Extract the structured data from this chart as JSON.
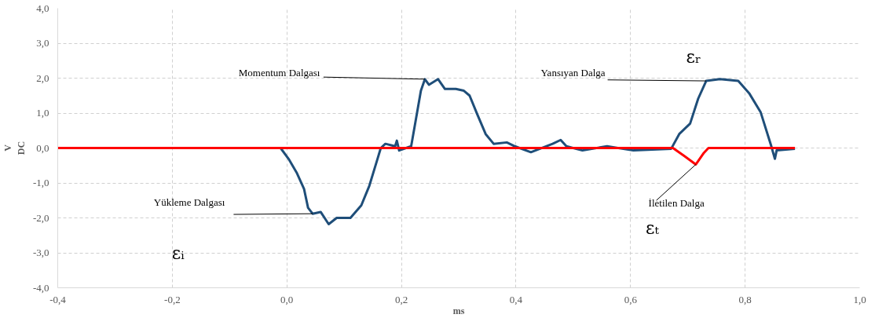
{
  "chart_data": {
    "type": "line",
    "xlabel": "ms",
    "ylabel": "V\nDC",
    "xlim": [
      -0.4,
      1.0
    ],
    "ylim": [
      -4.0,
      4.0
    ],
    "xticks": [
      {
        "value": -0.4,
        "label": "-0,4"
      },
      {
        "value": -0.2,
        "label": "-0,2"
      },
      {
        "value": 0.0,
        "label": "0,0"
      },
      {
        "value": 0.2,
        "label": "0,2"
      },
      {
        "value": 0.4,
        "label": "0,4"
      },
      {
        "value": 0.6,
        "label": "0,6"
      },
      {
        "value": 0.8,
        "label": "0,8"
      },
      {
        "value": 1.0,
        "label": "1,0"
      }
    ],
    "yticks": [
      {
        "value": -4,
        "label": "-4,0"
      },
      {
        "value": -3,
        "label": "-3,0"
      },
      {
        "value": -2,
        "label": "-2,0"
      },
      {
        "value": -1,
        "label": "-1,0"
      },
      {
        "value": 0,
        "label": "0,0"
      },
      {
        "value": 1,
        "label": "1,0"
      },
      {
        "value": 2,
        "label": "2,0"
      },
      {
        "value": 3,
        "label": "3,0"
      },
      {
        "value": 4,
        "label": "4,0"
      }
    ],
    "grid": true,
    "marker": "none",
    "line_style": "solid",
    "series": [
      {
        "color": "#1f4e79",
        "x": [
          -0.4,
          -0.011,
          0.003,
          0.017,
          0.03,
          0.037,
          0.045,
          0.059,
          0.073,
          0.087,
          0.111,
          0.13,
          0.144,
          0.157,
          0.164,
          0.172,
          0.189,
          0.192,
          0.196,
          0.217,
          0.224,
          0.234,
          0.241,
          0.248,
          0.264,
          0.276,
          0.295,
          0.309,
          0.319,
          0.333,
          0.347,
          0.361,
          0.384,
          0.398,
          0.426,
          0.464,
          0.478,
          0.488,
          0.516,
          0.559,
          0.605,
          0.671,
          0.685,
          0.704,
          0.718,
          0.732,
          0.756,
          0.788,
          0.807,
          0.827,
          0.845,
          0.852,
          0.855,
          0.887
        ],
        "values": [
          0,
          0,
          -0.31,
          -0.7,
          -1.17,
          -1.71,
          -1.88,
          -1.83,
          -2.18,
          -2.0,
          -2.0,
          -1.64,
          -1.08,
          -0.38,
          0,
          0.12,
          0.05,
          0.21,
          -0.07,
          0.05,
          0.7,
          1.64,
          1.97,
          1.81,
          1.97,
          1.69,
          1.69,
          1.64,
          1.5,
          0.94,
          0.4,
          0.12,
          0.16,
          0.05,
          -0.12,
          0.12,
          0.23,
          0.05,
          -0.07,
          0.05,
          -0.07,
          -0.02,
          0.4,
          0.7,
          1.41,
          1.92,
          1.97,
          1.92,
          1.57,
          1.03,
          0.09,
          -0.31,
          -0.07,
          -0.02
        ]
      },
      {
        "color": "#ff0000",
        "x": [
          -0.4,
          0.674,
          0.694,
          0.714,
          0.728,
          0.736,
          0.887
        ],
        "values": [
          0,
          0,
          -0.23,
          -0.47,
          -0.14,
          0,
          0
        ]
      }
    ],
    "annotations": [
      {
        "text": "Momentum Dalgası",
        "x": 0.241,
        "y": 1.97
      },
      {
        "text": "Yansıyan Dalga",
        "x": 0.732,
        "y": 1.92
      },
      {
        "text": "Yükleme Dalgası",
        "x": 0.045,
        "y": -1.88
      },
      {
        "text": "İletilen Dalga",
        "x": 0.714,
        "y": -0.47
      },
      "εᵣ",
      "εᵢ",
      "εₜ"
    ]
  }
}
